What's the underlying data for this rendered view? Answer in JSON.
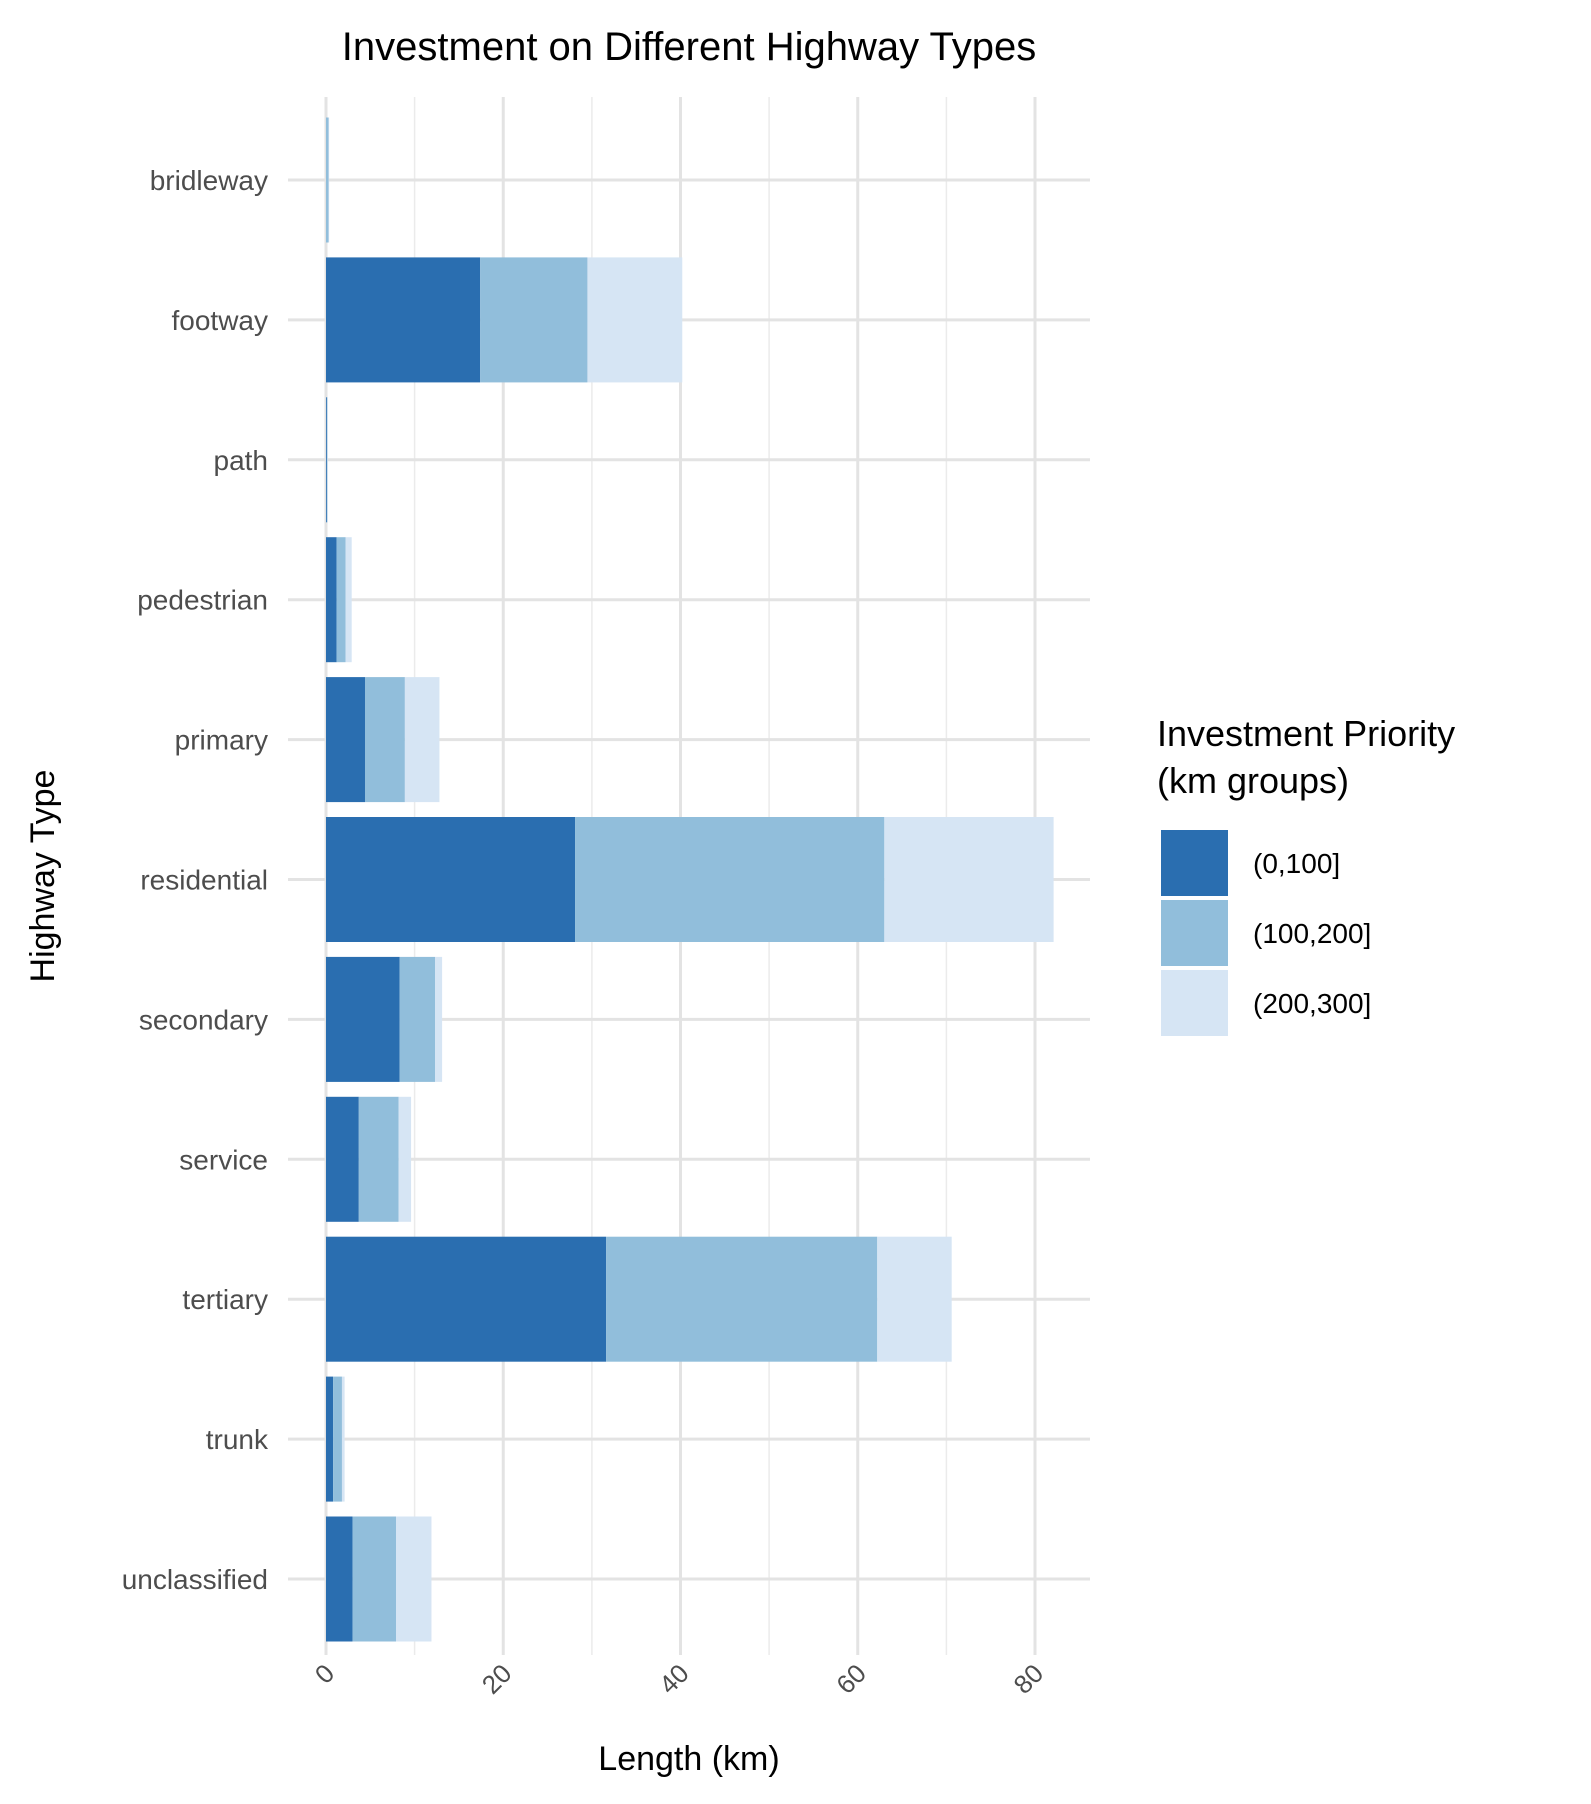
{
  "chart_data": {
    "type": "bar",
    "orientation": "horizontal",
    "stacked": true,
    "title": "Investment on Different Highway Types",
    "xlabel": "Length (km)",
    "ylabel": "Highway Type",
    "xlim": [
      0,
      86
    ],
    "xticks": [
      0,
      20,
      40,
      60,
      80
    ],
    "grid": true,
    "legend": {
      "title_lines": [
        "Investment Priority",
        "(km groups)"
      ],
      "placement": "right"
    },
    "categories": [
      "unclassified",
      "trunk",
      "tertiary",
      "service",
      "secondary",
      "residential",
      "primary",
      "pedestrian",
      "path",
      "footway",
      "bridleway"
    ],
    "series": [
      {
        "name": "(0,100]",
        "color": "#2a6eb0",
        "values": [
          3.0,
          0.8,
          31.6,
          3.7,
          8.3,
          28.1,
          4.4,
          1.2,
          0.1,
          17.4,
          0.0
        ]
      },
      {
        "name": "(100,200]",
        "color": "#91bedb",
        "values": [
          4.9,
          1.0,
          30.6,
          4.5,
          4.0,
          34.9,
          4.5,
          1.0,
          0.05,
          12.1,
          0.3
        ]
      },
      {
        "name": "(200,300]",
        "color": "#d6e5f4",
        "values": [
          4.0,
          0.3,
          8.4,
          1.4,
          0.8,
          19.1,
          3.9,
          0.7,
          0.05,
          10.7,
          0.05
        ]
      }
    ]
  }
}
